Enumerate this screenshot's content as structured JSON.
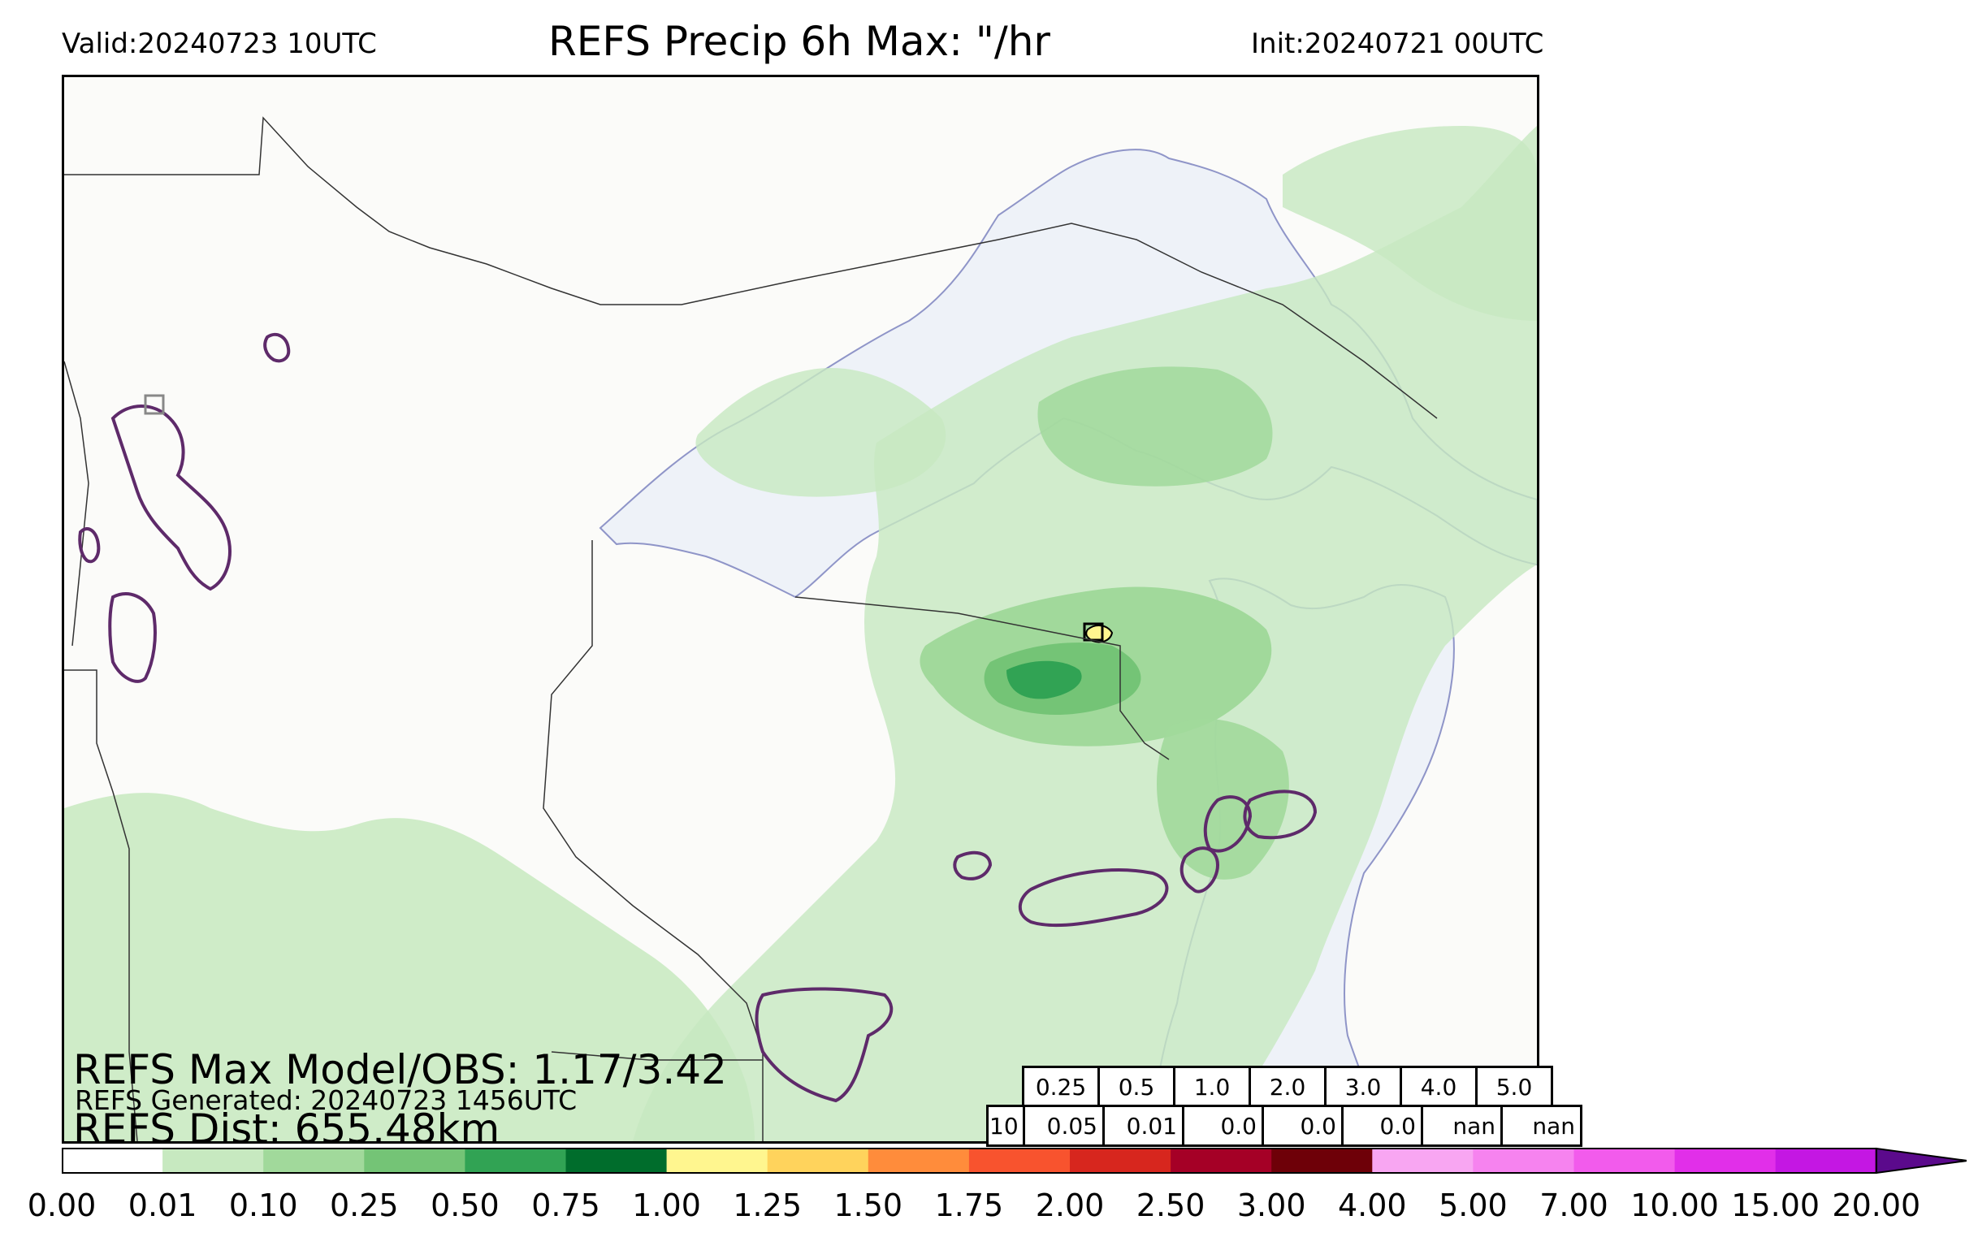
{
  "header": {
    "valid": "Valid:20240723 10UTC",
    "title": "REFS Precip 6h Max: \"/hr",
    "init": "Init:20240721 00UTC"
  },
  "stats": {
    "max_model_obs": "REFS Max Model/OBS: 1.17/3.42",
    "generated": "REFS Generated: 20240723 1456UTC",
    "distance": "REFS Dist: 655.48km"
  },
  "threshold_table": {
    "thresholds": [
      "0.25",
      "0.5",
      "1.0",
      "2.0",
      "3.0",
      "4.0",
      "5.0"
    ],
    "row2_lead": "10",
    "values": [
      "0.05",
      "0.01",
      "0.0",
      "0.0",
      "0.0",
      "nan",
      "nan"
    ]
  },
  "colorbar": {
    "labels": [
      "0.00",
      "0.01",
      "0.10",
      "0.25",
      "0.50",
      "0.75",
      "1.00",
      "1.25",
      "1.50",
      "1.75",
      "2.00",
      "2.50",
      "3.00",
      "4.00",
      "5.00",
      "7.00",
      "10.00",
      "15.00",
      "20.00"
    ],
    "colors": [
      "#ffffff",
      "#c7e9c0",
      "#a1d99b",
      "#74c476",
      "#31a354",
      "#006d2c",
      "#fff68f",
      "#ffd35c",
      "#ff8c3b",
      "#f8532e",
      "#d7261e",
      "#a50026",
      "#6e0008",
      "#f8a6f2",
      "#f683ef",
      "#f25bec",
      "#e12fe9",
      "#c417e3",
      "#9a0ad6"
    ],
    "extend_color": "#5b0a8c"
  },
  "map": {
    "land_color": "#fbfbf9",
    "water_color": "#eef2f8",
    "obs_contour_color": "#5e2a6a"
  }
}
